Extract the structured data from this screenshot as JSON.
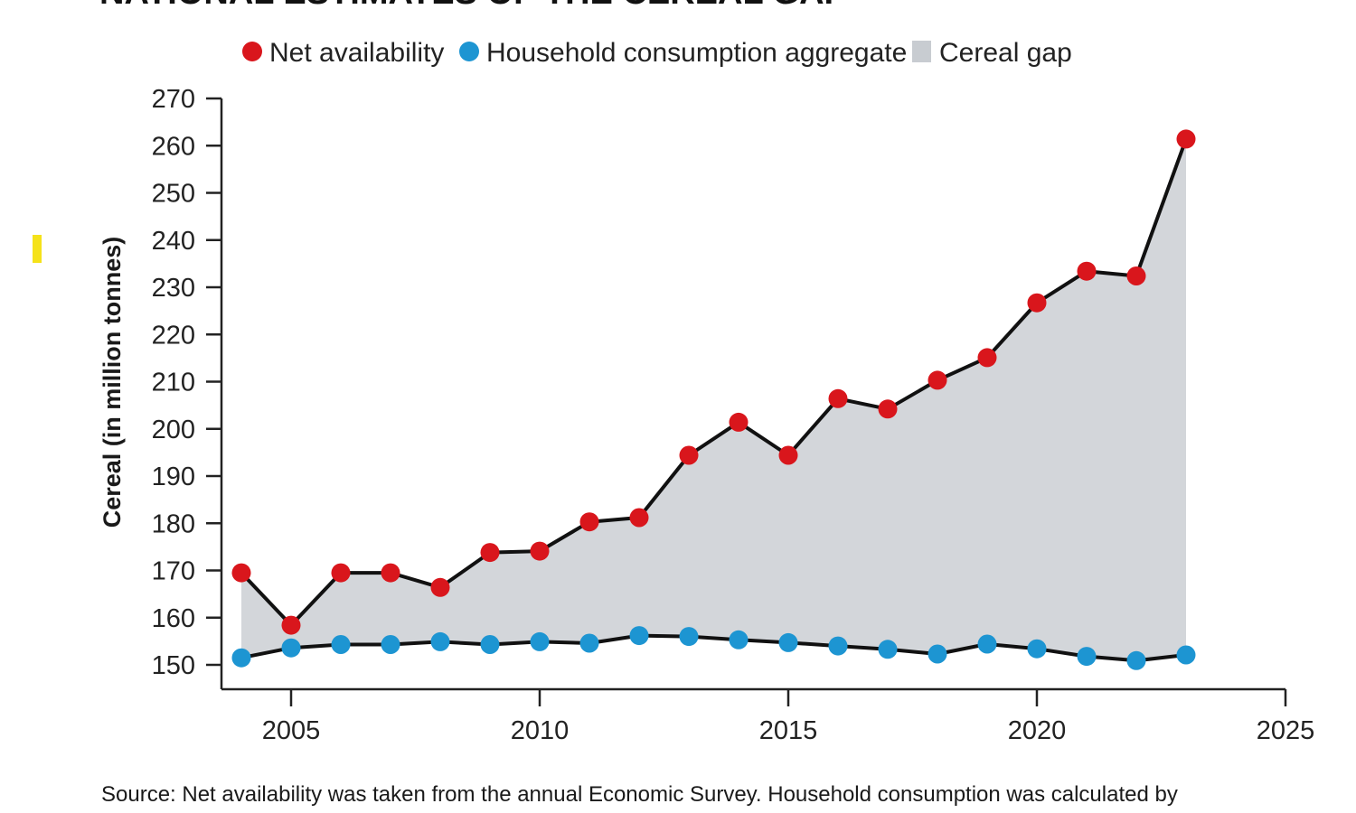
{
  "chart_data": {
    "type": "line",
    "title": "NATIONAL ESTIMATES OF THE CEREAL GAP",
    "xlabel": "",
    "ylabel": "Cereal (in million tonnes)",
    "xlim": [
      2003.6,
      2025
    ],
    "ylim": [
      145,
      270
    ],
    "x_ticks": [
      2005,
      2010,
      2015,
      2020,
      2025
    ],
    "y_ticks": [
      150,
      160,
      170,
      180,
      190,
      200,
      210,
      220,
      230,
      240,
      250,
      260,
      270
    ],
    "grid": false,
    "legend_position": "top",
    "x": [
      2004,
      2005,
      2006,
      2007,
      2008,
      2009,
      2010,
      2011,
      2012,
      2013,
      2014,
      2015,
      2016,
      2017,
      2018,
      2019,
      2020,
      2021,
      2022,
      2023
    ],
    "series": [
      {
        "name": "Net availability",
        "color": "#d9161c",
        "values": [
          169.5,
          158.4,
          169.5,
          169.5,
          166.4,
          173.8,
          174.1,
          180.3,
          181.2,
          194.4,
          201.4,
          194.4,
          206.4,
          204.2,
          210.3,
          215.1,
          226.7,
          233.4,
          232.4,
          261.4
        ]
      },
      {
        "name": "Household consumption aggregate",
        "color": "#1d95d2",
        "values": [
          151.5,
          153.6,
          154.3,
          154.3,
          154.9,
          154.3,
          154.9,
          154.6,
          156.2,
          156.0,
          155.3,
          154.7,
          154.0,
          153.3,
          152.3,
          154.4,
          153.4,
          151.8,
          150.9,
          152.1
        ]
      }
    ],
    "area": {
      "name": "Cereal gap",
      "color": "#d3d6da",
      "between": [
        "Net availability",
        "Household consumption aggregate"
      ]
    },
    "line_color": "#111111"
  },
  "source": "Source: Net availability was taken from the annual Economic Survey. Household consumption was calculated by"
}
